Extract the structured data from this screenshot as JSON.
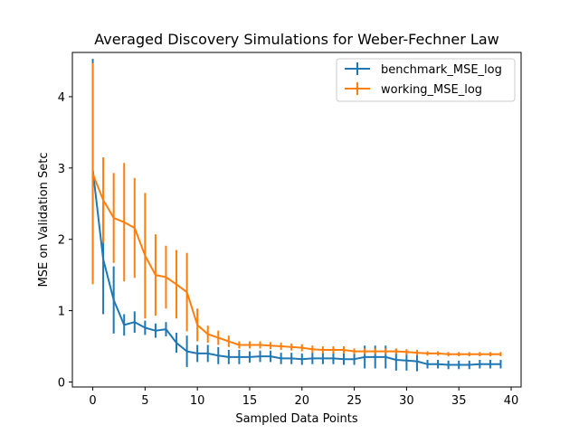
{
  "chart_data": {
    "type": "line",
    "title": "Averaged Discovery Simulations for Weber-Fechner Law",
    "xlabel": "Sampled Data Points",
    "ylabel": "MSE on Validation Setc",
    "xlim": [
      -1.95,
      40.95
    ],
    "ylim": [
      -0.07,
      4.62
    ],
    "xticks": [
      0,
      5,
      10,
      15,
      20,
      25,
      30,
      35,
      40
    ],
    "yticks": [
      0,
      1,
      2,
      3,
      4
    ],
    "legend_position": "top-right",
    "x": [
      0,
      1,
      2,
      3,
      4,
      5,
      6,
      7,
      8,
      9,
      10,
      11,
      12,
      13,
      14,
      15,
      16,
      17,
      18,
      19,
      20,
      21,
      22,
      23,
      24,
      25,
      26,
      27,
      28,
      29,
      30,
      31,
      32,
      33,
      34,
      35,
      36,
      37,
      38,
      39
    ],
    "series": [
      {
        "name": "benchmark_MSE_log",
        "color": "#1f77b4",
        "values": [
          2.98,
          1.72,
          1.15,
          0.8,
          0.84,
          0.76,
          0.72,
          0.74,
          0.55,
          0.43,
          0.4,
          0.4,
          0.37,
          0.35,
          0.35,
          0.35,
          0.36,
          0.36,
          0.33,
          0.33,
          0.32,
          0.33,
          0.33,
          0.33,
          0.32,
          0.32,
          0.35,
          0.35,
          0.35,
          0.31,
          0.3,
          0.29,
          0.25,
          0.25,
          0.24,
          0.24,
          0.24,
          0.25,
          0.25,
          0.25
        ],
        "errors": [
          1.55,
          0.77,
          0.47,
          0.15,
          0.15,
          0.1,
          0.1,
          0.1,
          0.14,
          0.22,
          0.12,
          0.12,
          0.12,
          0.1,
          0.1,
          0.08,
          0.08,
          0.08,
          0.08,
          0.08,
          0.08,
          0.08,
          0.08,
          0.08,
          0.08,
          0.08,
          0.16,
          0.16,
          0.16,
          0.15,
          0.14,
          0.14,
          0.06,
          0.06,
          0.06,
          0.06,
          0.06,
          0.06,
          0.06,
          0.06
        ]
      },
      {
        "name": "working_MSE_log",
        "color": "#ff7f0e",
        "values": [
          2.92,
          2.55,
          2.3,
          2.24,
          2.16,
          1.77,
          1.5,
          1.47,
          1.37,
          1.26,
          0.8,
          0.67,
          0.62,
          0.57,
          0.52,
          0.52,
          0.52,
          0.51,
          0.5,
          0.49,
          0.48,
          0.46,
          0.45,
          0.45,
          0.45,
          0.43,
          0.43,
          0.43,
          0.43,
          0.43,
          0.42,
          0.41,
          0.4,
          0.4,
          0.39,
          0.39,
          0.39,
          0.39,
          0.39,
          0.39
        ],
        "errors": [
          1.55,
          0.6,
          0.63,
          0.83,
          0.7,
          0.88,
          0.57,
          0.44,
          0.48,
          0.55,
          0.23,
          0.12,
          0.1,
          0.08,
          0.05,
          0.05,
          0.05,
          0.05,
          0.05,
          0.05,
          0.05,
          0.05,
          0.05,
          0.05,
          0.05,
          0.04,
          0.04,
          0.04,
          0.04,
          0.04,
          0.04,
          0.04,
          0.03,
          0.03,
          0.03,
          0.03,
          0.03,
          0.03,
          0.03,
          0.03
        ]
      }
    ]
  }
}
